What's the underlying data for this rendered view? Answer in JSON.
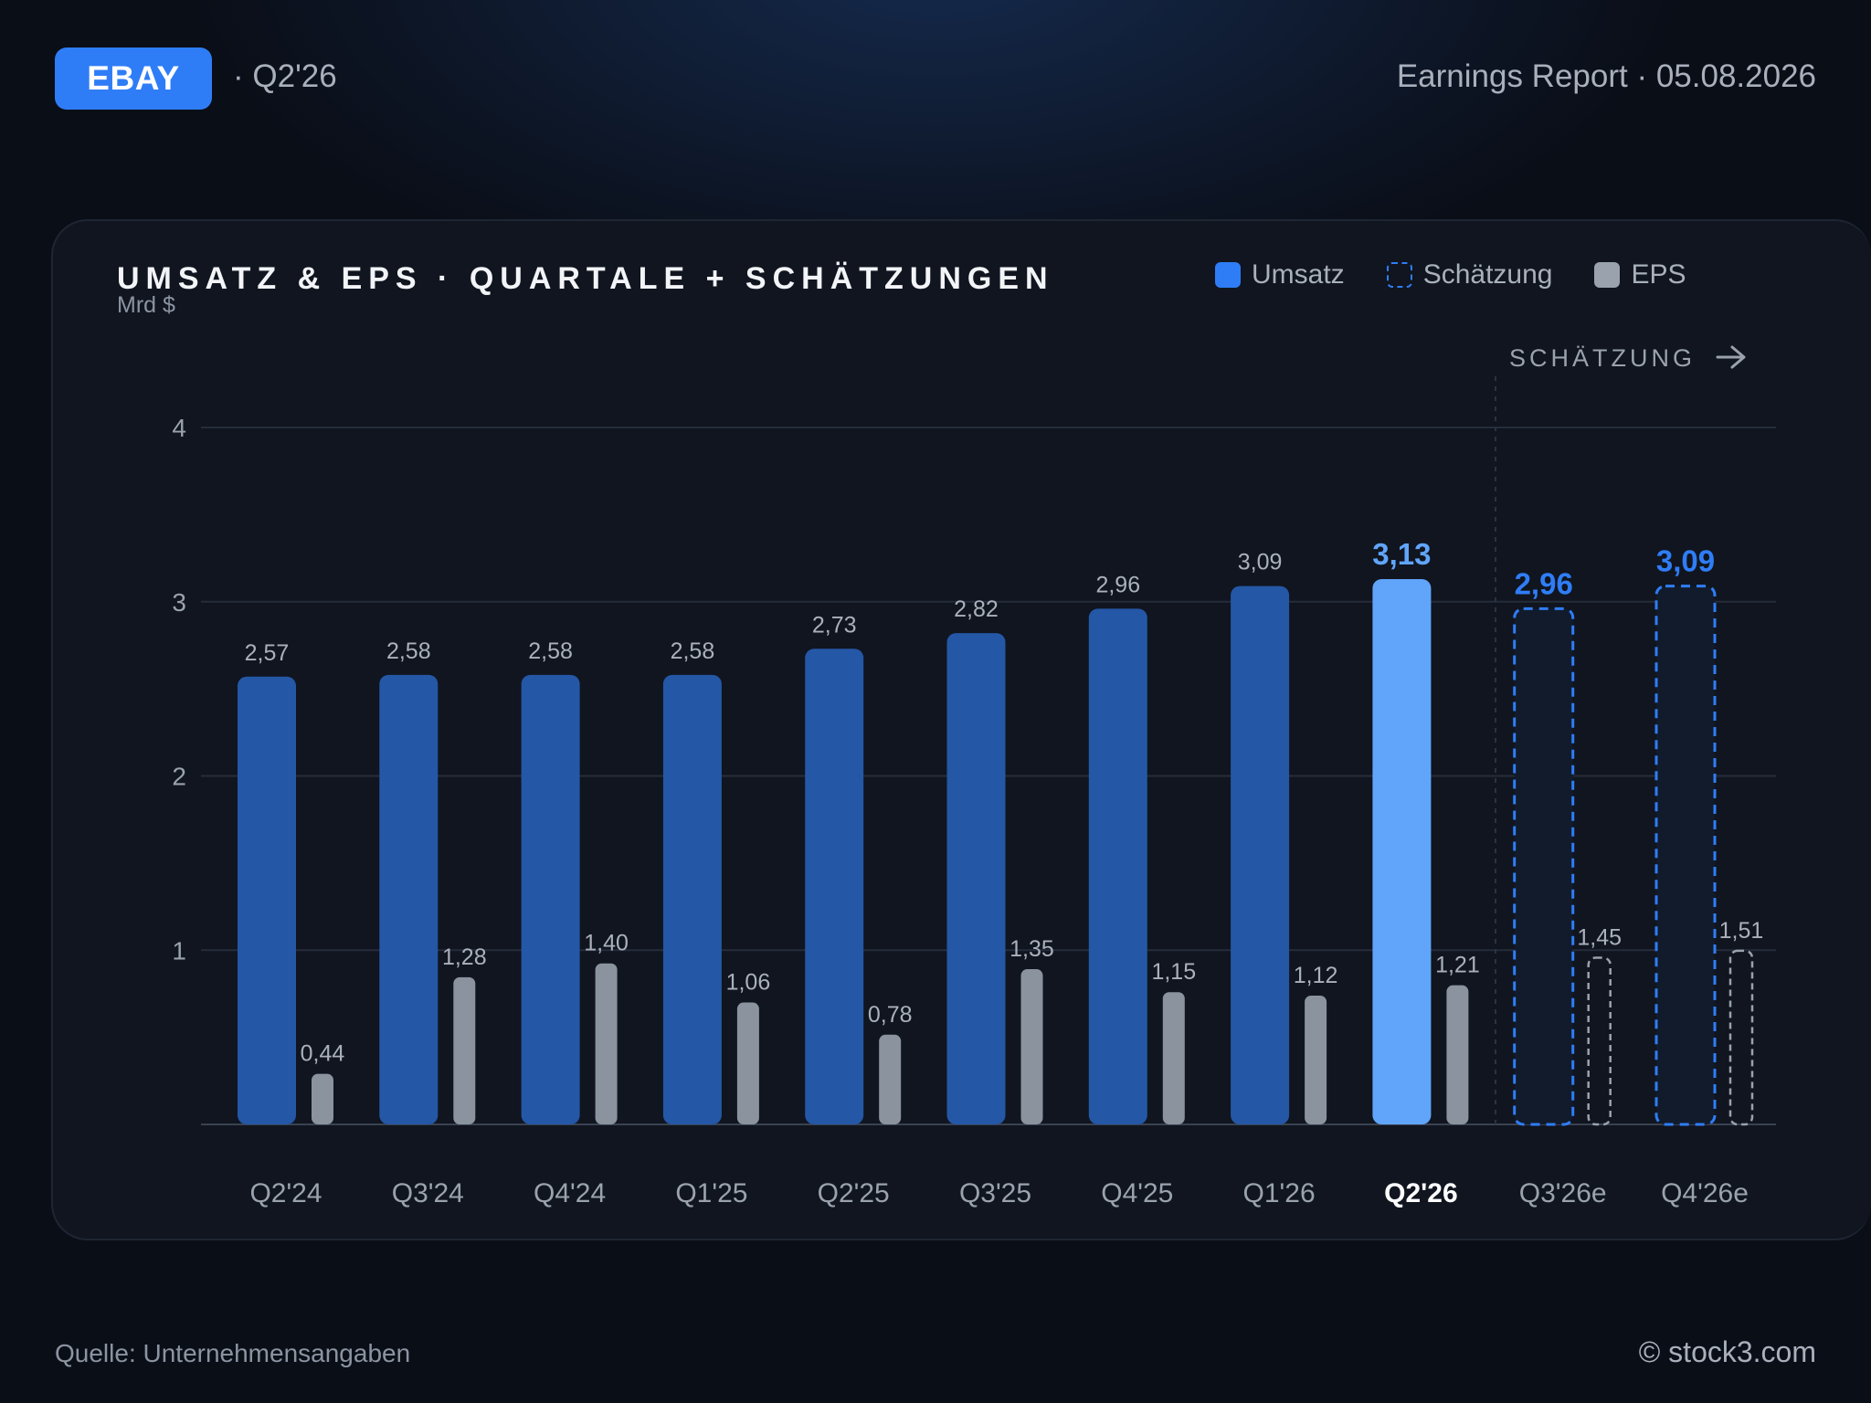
{
  "header": {
    "ticker": "EBAY",
    "period": "· Q2'26",
    "report": "Earnings Report · 05.08.2026"
  },
  "legend": {
    "revenue": "Umsatz",
    "estimate": "Schätzung",
    "eps": "EPS"
  },
  "footer": {
    "source": "Quelle: Unternehmensangaben",
    "brand": "© stock3.com"
  },
  "colors": {
    "revenue": "#2457a6",
    "current": "#60a5fa",
    "estimate": "#2f7df6",
    "eps": "#8b939f",
    "badge": "#2f7df6"
  },
  "chart_data": {
    "type": "bar",
    "title": "UMSATZ & EPS · QUARTALE + SCHÄTZUNGEN",
    "ylabel": "Mrd $",
    "ylim": [
      0,
      4
    ],
    "yticks": [
      "1",
      "2",
      "3",
      "4"
    ],
    "grid": true,
    "legend_position": "top-right",
    "estimate_marker": "SCHÄTZUNG",
    "categories": [
      "Q2'24",
      "Q3'24",
      "Q4'24",
      "Q1'25",
      "Q2'25",
      "Q3'25",
      "Q4'25",
      "Q1'26",
      "Q2'26",
      "Q3'26e",
      "Q4'26e"
    ],
    "current_index": 8,
    "estimate_from_index": 9,
    "series": [
      {
        "name": "Umsatz",
        "values": [
          2.57,
          2.58,
          2.58,
          2.58,
          2.73,
          2.82,
          2.96,
          3.09,
          3.13,
          2.96,
          3.09
        ],
        "labels": [
          "2,57",
          "2,58",
          "2,58",
          "2,58",
          "2,73",
          "2,82",
          "2,96",
          "3,09",
          "3,13",
          "2,96",
          "3,09"
        ]
      },
      {
        "name": "EPS",
        "values": [
          0.44,
          1.28,
          1.4,
          1.06,
          0.78,
          1.35,
          1.15,
          1.12,
          1.21,
          1.45,
          1.51
        ],
        "labels": [
          "0,44",
          "1,28",
          "1,40",
          "1,06",
          "0,78",
          "1,35",
          "1,15",
          "1,12",
          "1,21",
          "1,45",
          "1,51"
        ]
      }
    ]
  }
}
